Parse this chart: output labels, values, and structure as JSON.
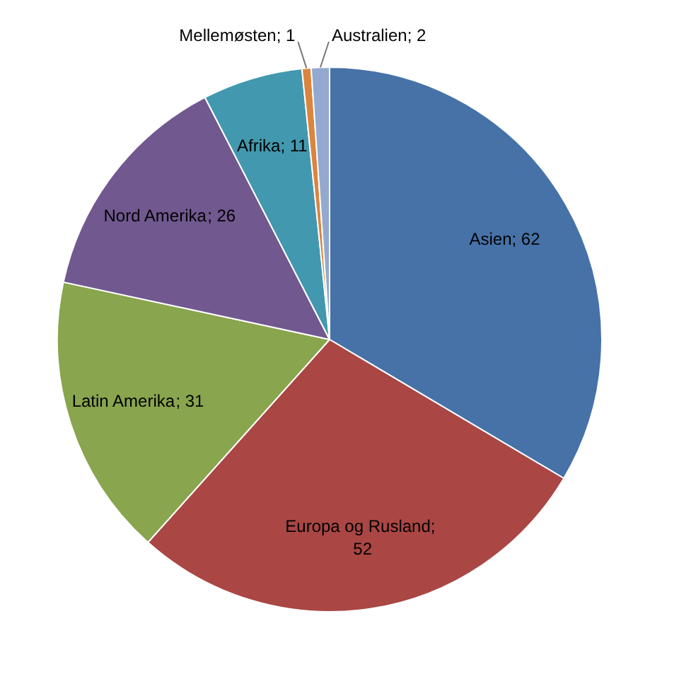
{
  "chart_data": {
    "type": "pie",
    "categories": [
      "Asien",
      "Europa og Rusland",
      "Latin Amerika",
      "Nord Amerika",
      "Afrika",
      "Mellemøsten",
      "Australien"
    ],
    "values": [
      62,
      52,
      31,
      26,
      11,
      1,
      2
    ],
    "value_labels": [
      "; 62",
      "; 52",
      "; 31",
      "; 26",
      "; 11",
      "; 1",
      "; 2"
    ],
    "colors": [
      "#4672a8",
      "#aa4644",
      "#89a54e",
      "#71588f",
      "#4298af",
      "#db843d",
      "#93a9cf"
    ],
    "legend": false
  }
}
